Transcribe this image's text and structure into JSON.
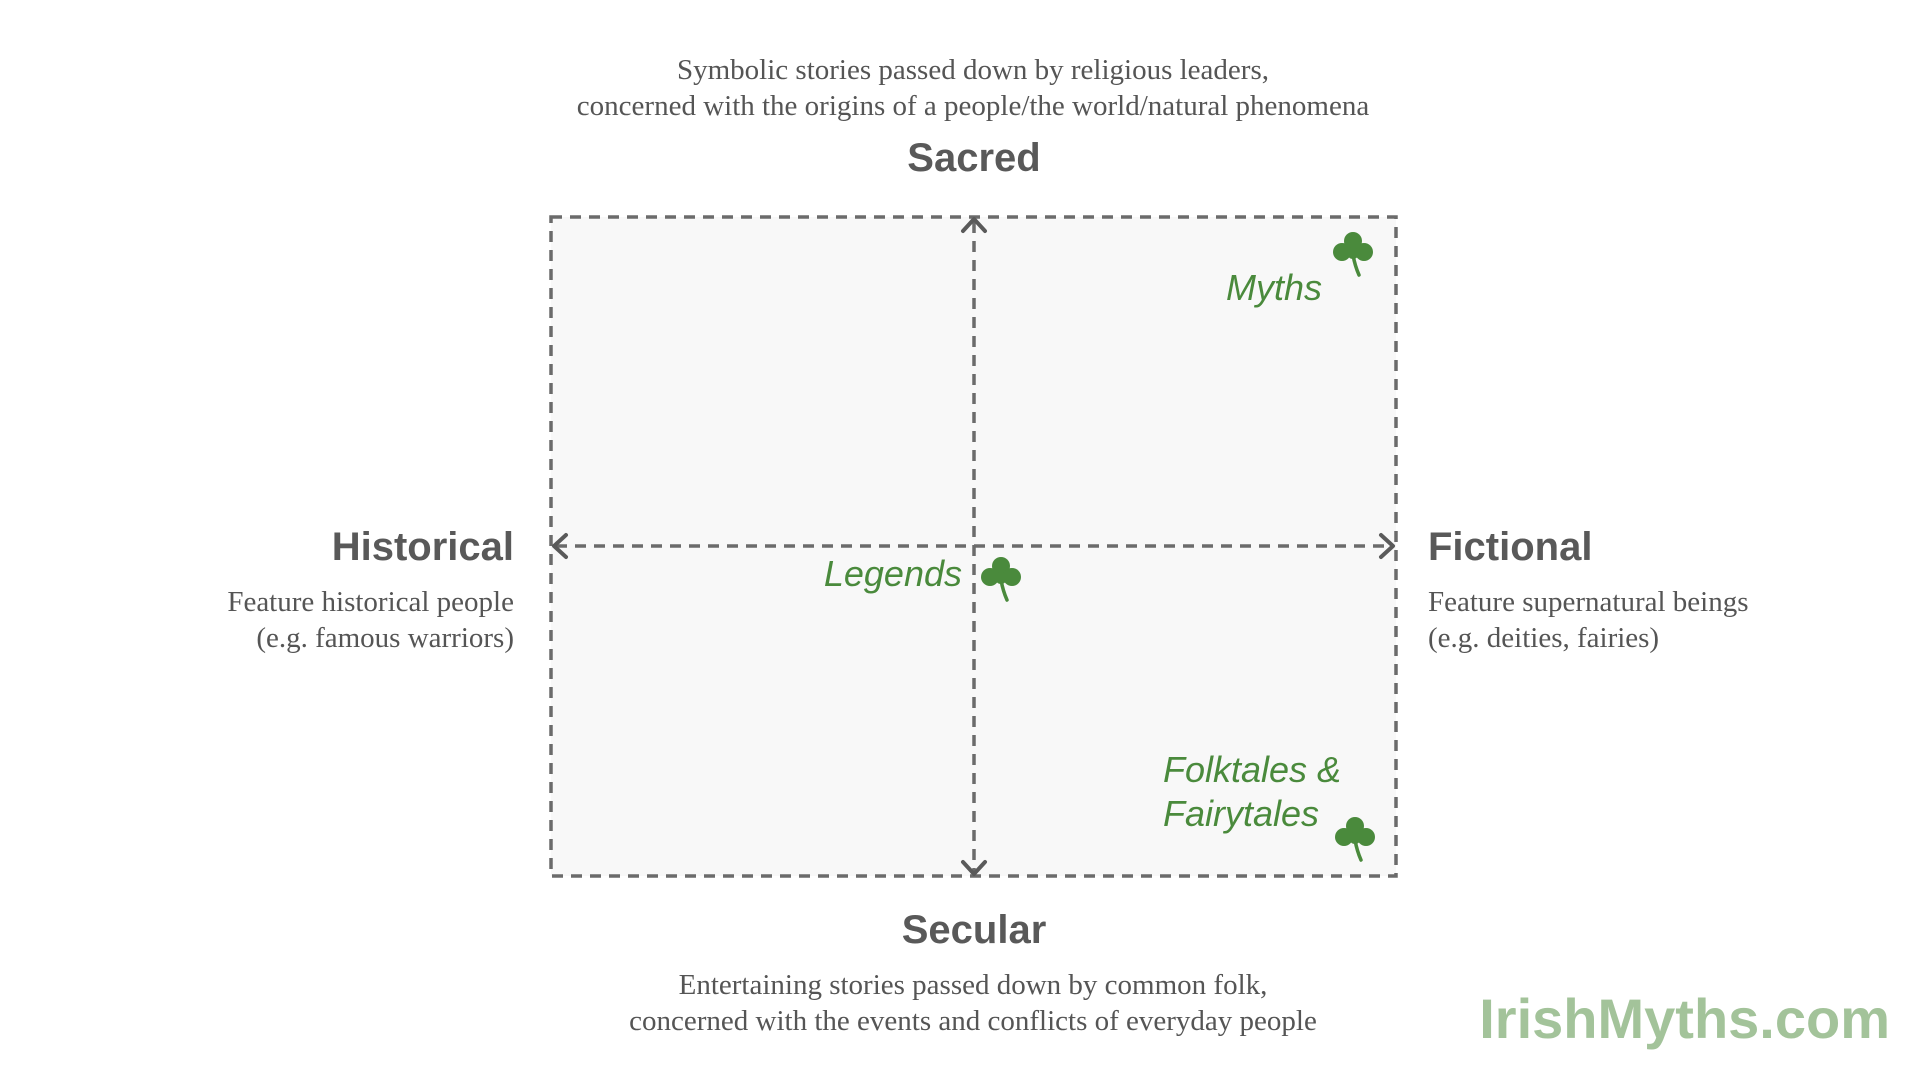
{
  "axes": {
    "top": {
      "label": "Sacred",
      "description": [
        "Symbolic stories passed down by religious leaders,",
        "concerned with the origins of a people/the world/natural phenomena"
      ]
    },
    "bottom": {
      "label": "Secular",
      "description": [
        "Entertaining stories passed down by common folk,",
        "concerned with the events and conflicts of everyday people"
      ]
    },
    "left": {
      "label": "Historical",
      "description": [
        "Feature historical people",
        "(e.g. famous warriors)"
      ]
    },
    "right": {
      "label": "Fictional",
      "description": [
        "Feature supernatural beings",
        "(e.g. deities, fairies)"
      ]
    }
  },
  "categories": {
    "myths": [
      "Myths"
    ],
    "legends": [
      "Legends"
    ],
    "folktales": [
      "Folktales &",
      "Fairytales"
    ]
  },
  "brand": "IrishMyths.com",
  "colors": {
    "accent_green": "#4a8a3c",
    "brand_green": "#a3c39a",
    "axis_gray": "#595959",
    "grid_fill": "#f8f8f8"
  },
  "icons": {
    "marker": "shamrock-icon"
  }
}
